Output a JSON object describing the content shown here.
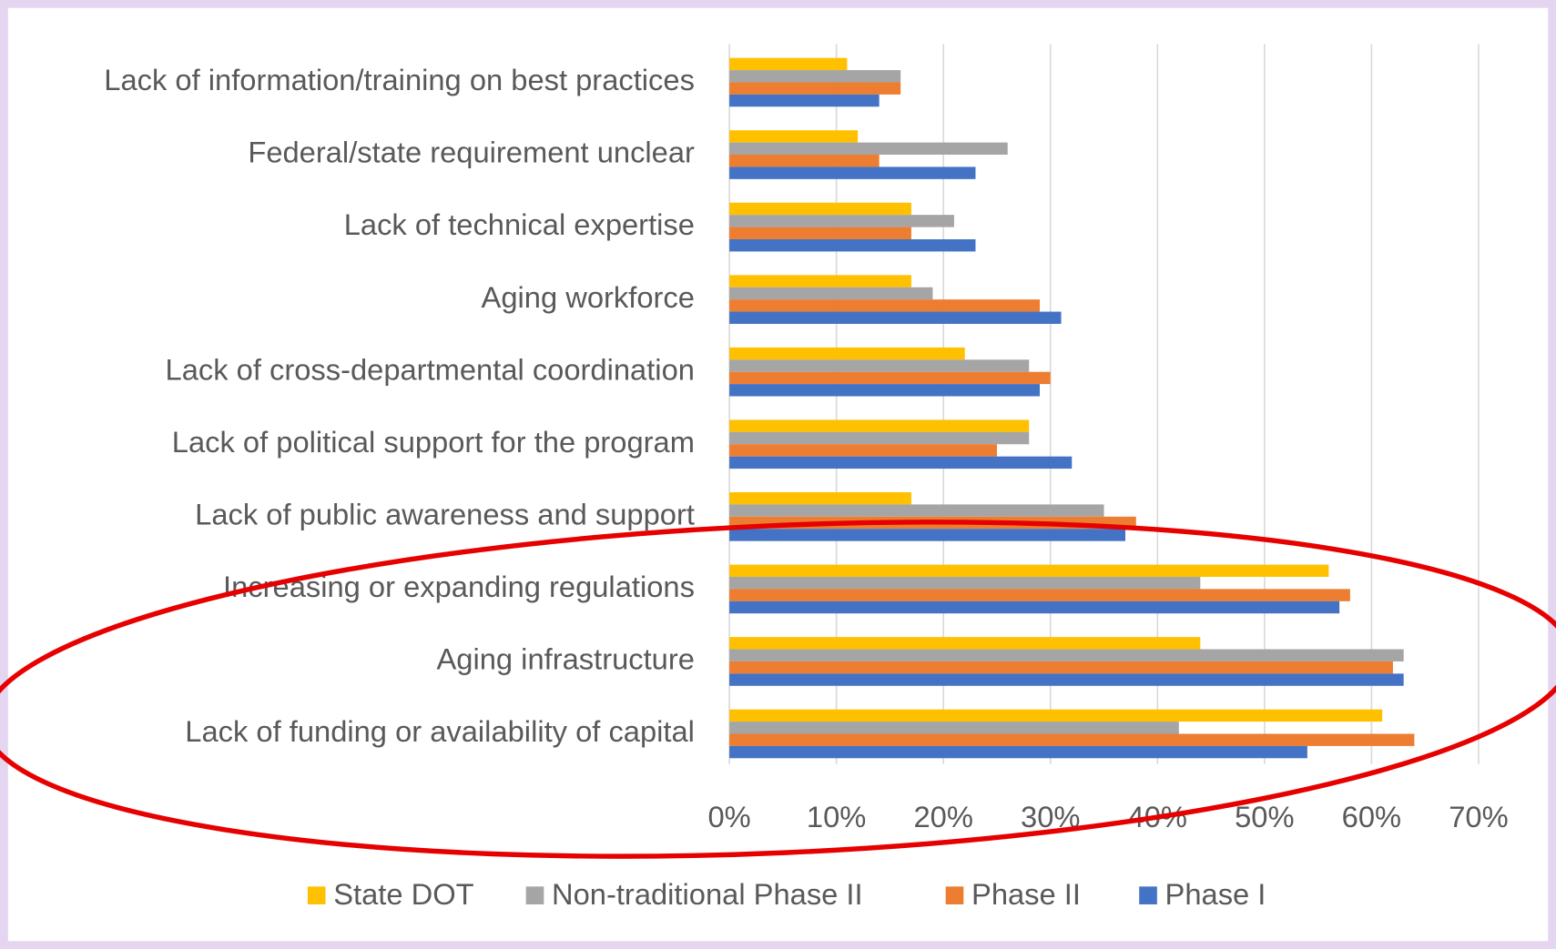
{
  "chart_data": {
    "type": "barh",
    "categories": [
      "Lack of information/training on best practices",
      "Federal/state requirement unclear",
      "Lack of technical expertise",
      "Aging workforce",
      "Lack of cross-departmental coordination",
      "Lack of political support for the program",
      "Lack of public awareness and support",
      "Increasing or expanding regulations",
      "Aging infrastructure",
      "Lack of funding or availability of capital"
    ],
    "series": [
      {
        "name": "State DOT",
        "color": "#FFC000",
        "values": [
          11,
          12,
          17,
          17,
          22,
          28,
          17,
          56,
          44,
          61
        ]
      },
      {
        "name": "Non-traditional Phase II",
        "color": "#A5A5A5",
        "values": [
          16,
          26,
          21,
          19,
          28,
          28,
          35,
          44,
          63,
          42
        ]
      },
      {
        "name": "Phase II",
        "color": "#ED7D31",
        "values": [
          16,
          14,
          17,
          29,
          30,
          25,
          38,
          58,
          62,
          64
        ]
      },
      {
        "name": "Phase I",
        "color": "#4472C4",
        "values": [
          14,
          23,
          23,
          31,
          29,
          32,
          37,
          57,
          63,
          54
        ]
      }
    ],
    "xlim": [
      0,
      70
    ],
    "xticks": [
      {
        "value": 0,
        "label": "0%"
      },
      {
        "value": 10,
        "label": "10%"
      },
      {
        "value": 20,
        "label": "20%"
      },
      {
        "value": 30,
        "label": "30%"
      },
      {
        "value": 40,
        "label": "40%"
      },
      {
        "value": 50,
        "label": "50%"
      },
      {
        "value": 60,
        "label": "60%"
      },
      {
        "value": 70,
        "label": "70%"
      }
    ],
    "grid": true,
    "legend": "bottom"
  }
}
